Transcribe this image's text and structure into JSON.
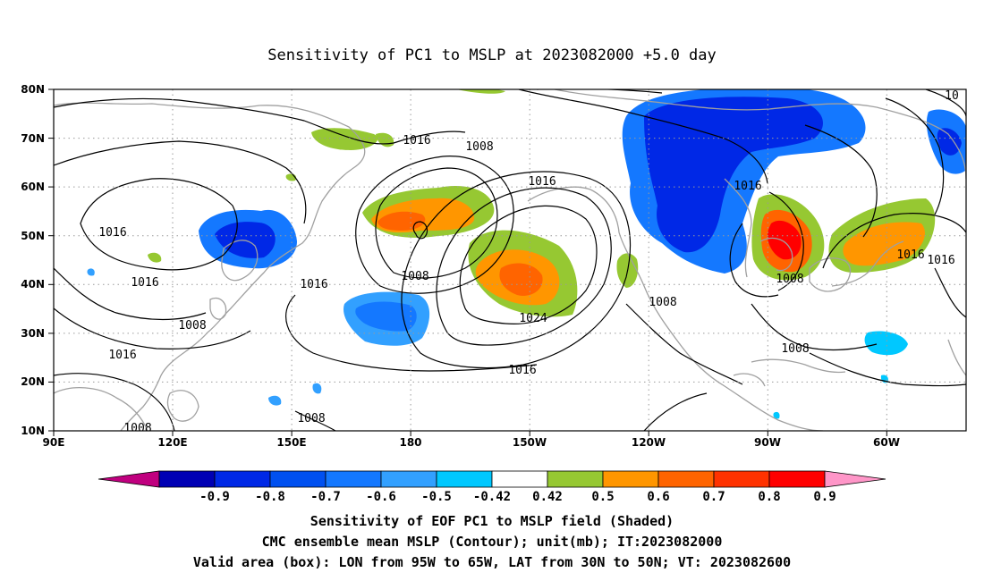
{
  "title": "Sensitivity of PC1 to MSLP at 2023082000 +5.0 day",
  "lat_labels": [
    "80N",
    "70N",
    "60N",
    "50N",
    "40N",
    "30N",
    "20N",
    "10N"
  ],
  "lon_labels": [
    "90E",
    "120E",
    "150E",
    "180",
    "150W",
    "120W",
    "90W",
    "60W"
  ],
  "contour_labels": [
    "1016",
    "1008",
    "1016",
    "1016",
    "1016",
    "1016",
    "1008",
    "1008",
    "1016",
    "1024",
    "1016",
    "1008",
    "1008",
    "1008",
    "1008",
    "1016",
    "1016",
    "1016",
    "10",
    "1008",
    "1008"
  ],
  "colorbar": {
    "ticks": [
      "-0.9",
      "-0.8",
      "-0.7",
      "-0.6",
      "-0.5",
      "-0.42",
      "0.42",
      "0.5",
      "0.6",
      "0.7",
      "0.8",
      "0.9"
    ],
    "colors": [
      "#c0007f",
      "#0000b4",
      "#0028e6",
      "#0050f0",
      "#1478ff",
      "#32a0ff",
      "#00c8ff",
      "#ffffff",
      "#96c832",
      "#ff9600",
      "#ff6400",
      "#ff3200",
      "#ff0000",
      "#ff96c8"
    ]
  },
  "caption": [
    "Sensitivity of EOF PC1 to MSLP field (Shaded)",
    "CMC ensemble mean MSLP (Contour); unit(mb); IT:2023082000",
    "Valid area (box): LON from 95W to 65W, LAT from 30N to 50N; VT: 2023082600"
  ],
  "valid_box": {
    "lon": [
      -95,
      -65
    ],
    "lat": [
      30,
      50
    ]
  }
}
